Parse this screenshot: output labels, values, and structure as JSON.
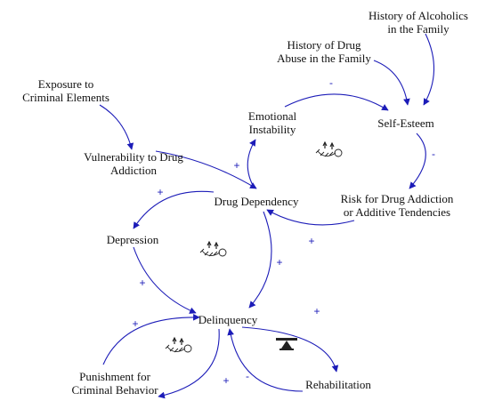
{
  "diagram": {
    "nodes": {
      "exposure": [
        "Exposure to",
        "Criminal Elements"
      ],
      "vulnerability": [
        "Vulnerability to Drug",
        "Addiction"
      ],
      "history_alcoholics": [
        "History of Alcoholics",
        "in the Family"
      ],
      "history_drug_abuse": [
        "History of Drug",
        "Abuse in the Family"
      ],
      "emotional_instability": [
        "Emotional",
        "Instability"
      ],
      "self_esteem": [
        "Self-Esteem"
      ],
      "drug_dependency": [
        "Drug Dependency"
      ],
      "risk": [
        "Risk for Drug Addiction",
        "or Additive Tendencies"
      ],
      "depression": [
        "Depression"
      ],
      "delinquency": [
        "Delinquency"
      ],
      "punishment": [
        "Punishment for",
        "Criminal Behavior"
      ],
      "rehabilitation": [
        "Rehabilitation"
      ]
    },
    "polarities": {
      "emo_to_selfesteem": "-",
      "selfesteem_to_risk": "-",
      "vuln_to_drugdep": "+",
      "risk_to_drugdep": "+",
      "drugdep_to_depression": "+",
      "drugdep_to_delinquency": "+",
      "depression_to_delinquency": "+",
      "delinquency_to_rehab": "+",
      "punishment_to_delinquency": "+",
      "delinquency_to_punishment": "+",
      "rehab_to_delinquency": "-"
    },
    "loops": {
      "upper": "reinforcing-loop-icon",
      "middle": "reinforcing-loop-icon",
      "lower_left": "reinforcing-loop-icon",
      "lower_right": "balancing-loop-icon"
    },
    "colors": {
      "arrow": "#1c1cb8",
      "text": "#111111"
    }
  }
}
